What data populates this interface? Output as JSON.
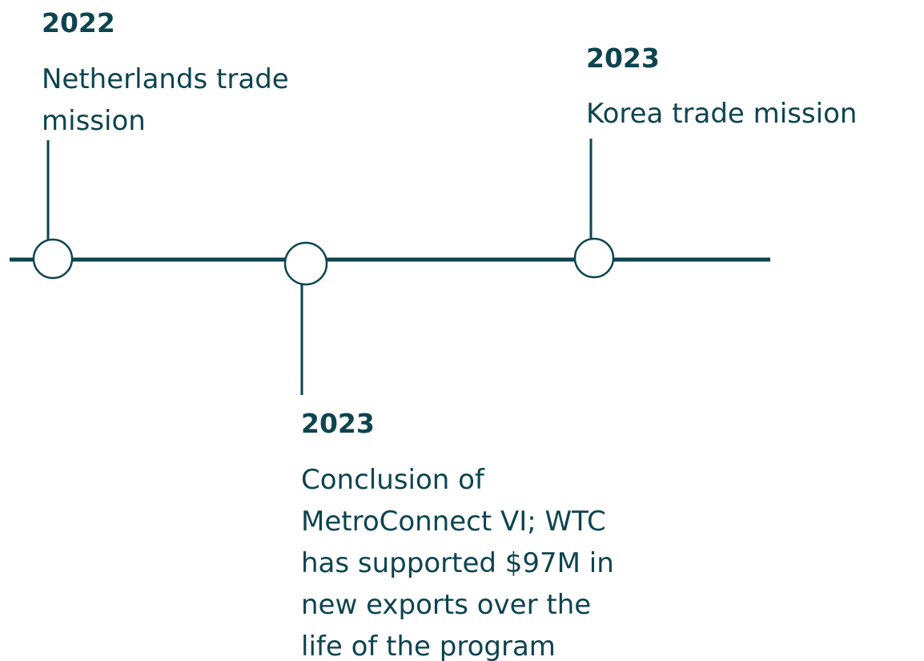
{
  "events": [
    {
      "year": "2022",
      "description": [
        "Netherlands trade",
        "mission"
      ]
    },
    {
      "year": "2023",
      "description": [
        "Conclusion of",
        "MetroConnect VI; WTC",
        "has supported $97M in",
        "new exports over the",
        "life of the program"
      ]
    },
    {
      "year": "2023",
      "description": [
        "Korea trade mission"
      ]
    }
  ]
}
